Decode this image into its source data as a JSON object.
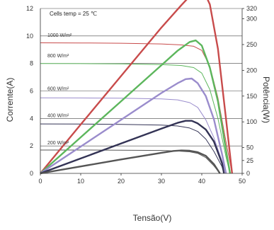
{
  "chart_data": {
    "type": "line",
    "annotation": "Cells temp = 25 ℃",
    "xlabel": "Tensão(V)",
    "ylabel": "Corrente(A)",
    "y2label": "Potência(W)",
    "xlim": [
      0,
      50
    ],
    "ylim": [
      0,
      12
    ],
    "y2lim": [
      0,
      320
    ],
    "xticks": [
      "0",
      "10",
      "20",
      "30",
      "40",
      "50"
    ],
    "yticks": [
      "0",
      "2",
      "4",
      "6",
      "8",
      "10",
      "12"
    ],
    "y2ticks": [
      "0",
      "25",
      "50",
      "100",
      "150",
      "200",
      "250",
      "300",
      "320"
    ],
    "grid": "horizontal",
    "irradiance_labels": [
      "1000 W/m²",
      "800 W/m²",
      "600 W/m²",
      "400 W/m²",
      "200 W/m²"
    ],
    "current_series": [
      {
        "irradiance": "1000 W/m²",
        "color": "#c84b4b",
        "x": [
          0,
          10,
          20,
          30,
          35,
          38,
          40,
          42,
          44,
          46,
          47.5
        ],
        "y": [
          9.5,
          9.49,
          9.47,
          9.42,
          9.35,
          9.25,
          8.95,
          7.8,
          5.5,
          2.3,
          0
        ]
      },
      {
        "irradiance": "800 W/m²",
        "color": "#5cb65c",
        "x": [
          0,
          10,
          20,
          30,
          35,
          38,
          40,
          42,
          44,
          46,
          47
        ],
        "y": [
          8.0,
          7.99,
          7.97,
          7.92,
          7.85,
          7.7,
          7.3,
          6.1,
          4.0,
          1.2,
          0
        ]
      },
      {
        "irradiance": "600 W/m²",
        "color": "#9a8ccc",
        "x": [
          0,
          10,
          20,
          30,
          34,
          37,
          39,
          41,
          43,
          45,
          46
        ],
        "y": [
          5.5,
          5.49,
          5.47,
          5.42,
          5.35,
          5.15,
          4.8,
          3.9,
          2.6,
          0.9,
          0
        ]
      },
      {
        "irradiance": "400 W/m²",
        "color": "#333355",
        "x": [
          0,
          10,
          20,
          30,
          34,
          37,
          39,
          41,
          43,
          45,
          45.5
        ],
        "y": [
          3.6,
          3.59,
          3.57,
          3.52,
          3.45,
          3.3,
          3.05,
          2.5,
          1.6,
          0.5,
          0
        ]
      },
      {
        "irradiance": "200 W/m²",
        "color": "#555555",
        "x": [
          0,
          10,
          20,
          30,
          34,
          37,
          39,
          41,
          43,
          44.5
        ],
        "y": [
          1.7,
          1.7,
          1.69,
          1.67,
          1.63,
          1.57,
          1.46,
          1.15,
          0.55,
          0
        ]
      }
    ],
    "power_series": [
      {
        "irradiance": "1000 W/m²",
        "color": "#c84b4b",
        "x": [
          0,
          10,
          20,
          30,
          35,
          38,
          40,
          41,
          42,
          44,
          46,
          47.5
        ],
        "y": [
          0,
          94.9,
          189,
          283,
          327,
          352,
          358,
          345,
          328,
          242,
          106,
          0
        ]
      },
      {
        "irradiance": "800 W/m²",
        "color": "#5cb65c",
        "x": [
          0,
          10,
          20,
          30,
          34,
          37,
          38.5,
          40,
          42,
          44,
          46,
          47
        ],
        "y": [
          0,
          70,
          140,
          210,
          238,
          255,
          258,
          248,
          205,
          140,
          45,
          0
        ]
      },
      {
        "irradiance": "600 W/m²",
        "color": "#9a8ccc",
        "x": [
          0,
          10,
          20,
          30,
          34,
          36,
          37.5,
          39,
          41,
          43,
          45,
          46
        ],
        "y": [
          0,
          52,
          104,
          156,
          175,
          183,
          184,
          175,
          150,
          105,
          38,
          0
        ]
      },
      {
        "irradiance": "400 W/m²",
        "color": "#333355",
        "x": [
          0,
          10,
          20,
          30,
          34,
          36,
          37.5,
          39,
          41,
          43,
          45,
          45.5
        ],
        "y": [
          0,
          29,
          58,
          87,
          98,
          102,
          102,
          97,
          85,
          62,
          20,
          0
        ]
      },
      {
        "irradiance": "200 W/m²",
        "color": "#555555",
        "x": [
          0,
          10,
          20,
          30,
          33,
          35,
          37,
          39,
          41,
          43,
          44.5
        ],
        "y": [
          0,
          13.5,
          27,
          40,
          43.5,
          44.5,
          44,
          41,
          34,
          18,
          0
        ]
      }
    ]
  }
}
